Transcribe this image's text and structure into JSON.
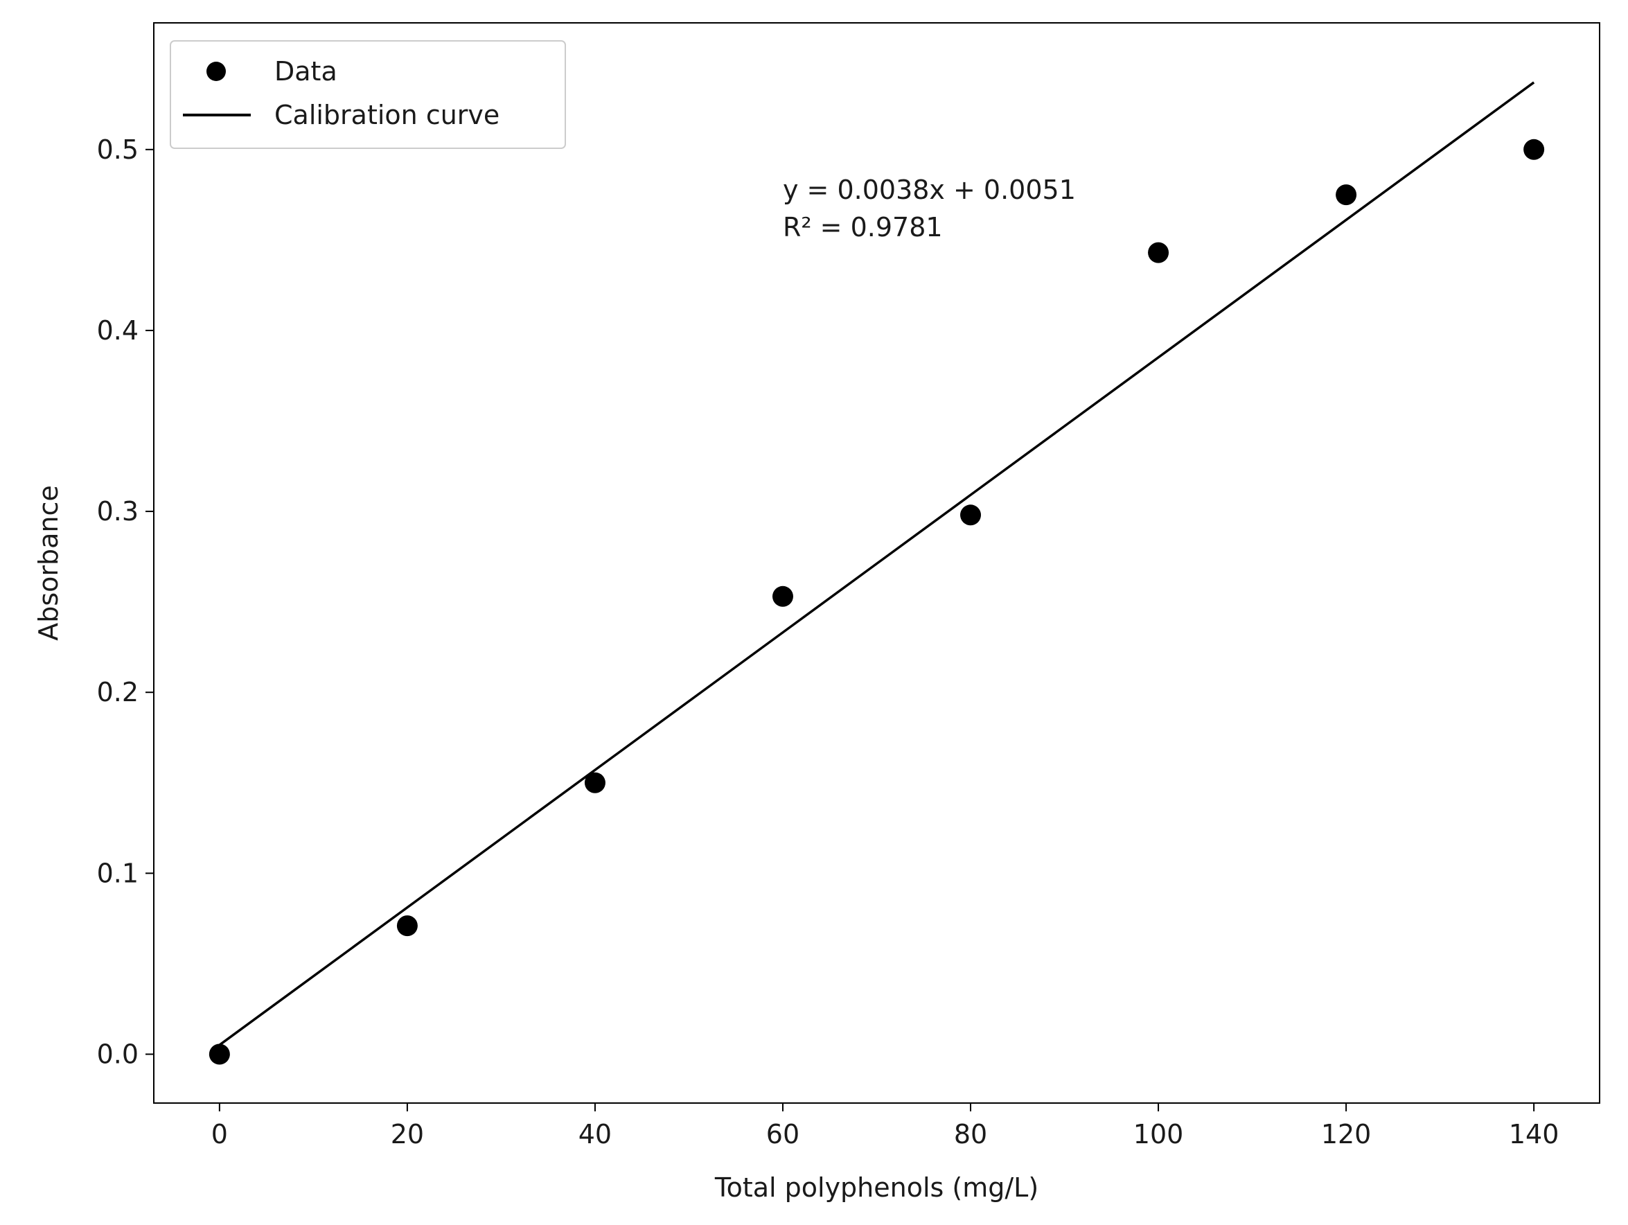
{
  "chart_data": {
    "type": "scatter",
    "xlabel": "Total polyphenols (mg/L)",
    "ylabel": "Absorbance",
    "xlim": [
      -7,
      147
    ],
    "ylim": [
      -0.027,
      0.57
    ],
    "x_ticks": [
      0,
      20,
      40,
      60,
      80,
      100,
      120,
      140
    ],
    "x_tick_labels": [
      "0",
      "20",
      "40",
      "60",
      "80",
      "100",
      "120",
      "140"
    ],
    "y_ticks": [
      0.0,
      0.1,
      0.2,
      0.3,
      0.4,
      0.5
    ],
    "y_tick_labels": [
      "0.0",
      "0.1",
      "0.2",
      "0.3",
      "0.4",
      "0.5"
    ],
    "grid": false,
    "legend_position": "top-left",
    "series": [
      {
        "name": "Data",
        "kind": "scatter",
        "color": "#000000",
        "x": [
          0,
          20,
          40,
          60,
          80,
          100,
          120,
          140
        ],
        "y": [
          0.0,
          0.071,
          0.15,
          0.253,
          0.298,
          0.443,
          0.475,
          0.5
        ]
      },
      {
        "name": "Calibration curve",
        "kind": "line",
        "color": "#000000",
        "slope": 0.0038,
        "intercept": 0.0051,
        "x": [
          0,
          140
        ],
        "y": [
          0.0051,
          0.5371
        ]
      }
    ],
    "annotations": [
      "y = 0.0038x + 0.0051",
      "R² = 0.9781"
    ]
  }
}
